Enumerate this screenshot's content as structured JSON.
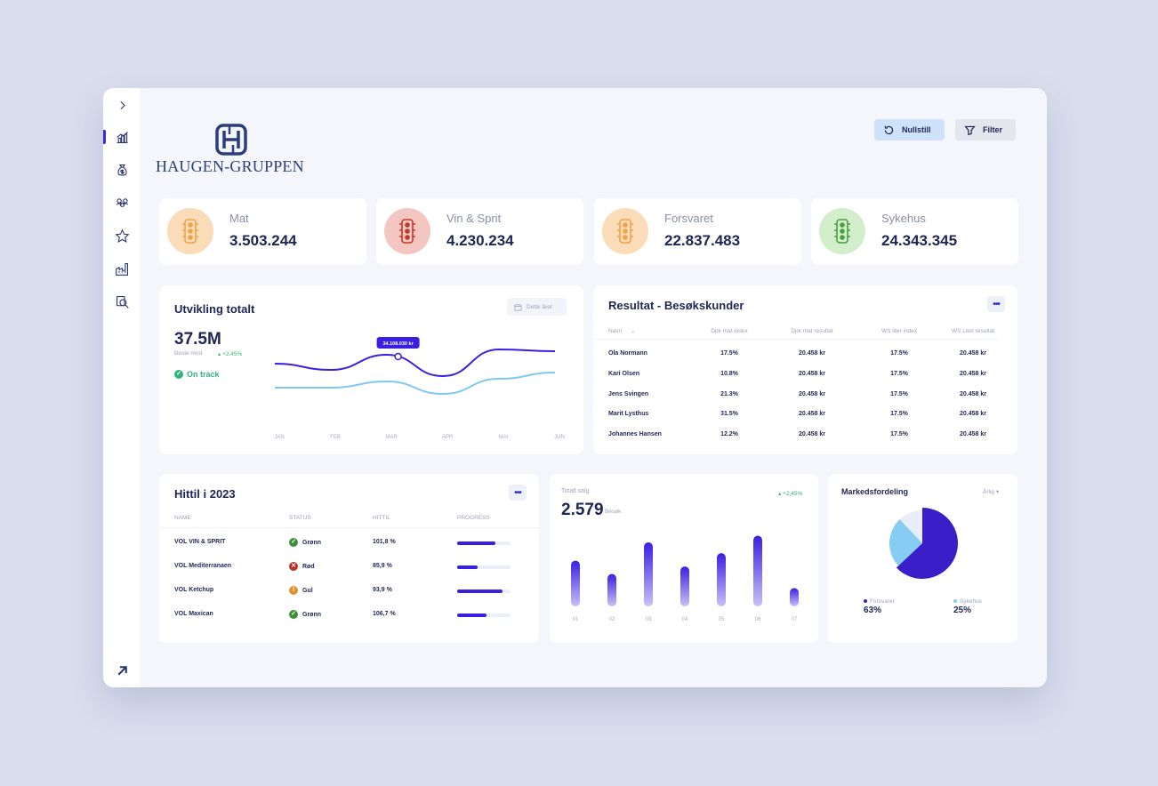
{
  "brand": {
    "name": "HAUGEN-GRUPPEN"
  },
  "sidebar": {
    "items": [
      {
        "icon": "chevron-right-icon"
      },
      {
        "icon": "chart-icon"
      },
      {
        "icon": "money-bag-icon"
      },
      {
        "icon": "group-icon"
      },
      {
        "icon": "star-icon"
      },
      {
        "icon": "factory-icon"
      },
      {
        "icon": "search-doc-icon"
      }
    ],
    "bottom_icon": "arrow-up-right-icon"
  },
  "header": {
    "reset_label": "Nullstill",
    "filter_label": "Filter"
  },
  "kpis": [
    {
      "label": "Mat",
      "value": "3.503.244",
      "color": "#f0a24a",
      "bg": "#fbdcb8"
    },
    {
      "label": "Vin & Sprit",
      "value": "4.230.234",
      "color": "#c0392b",
      "bg": "#f3c6c2"
    },
    {
      "label": "Forsvaret",
      "value": "22.837.483",
      "color": "#f0a24a",
      "bg": "#fbdcb8"
    },
    {
      "label": "Sykehus",
      "value": "24.343.345",
      "color": "#4a9e3f",
      "bg": "#d3eecb"
    }
  ],
  "development": {
    "title": "Utvikling totalt",
    "period": "Dette året",
    "value": "37.5M",
    "sub": "Beste mnd",
    "change": "+2.45%",
    "status": "On track",
    "tooltip": "34.108.030 kr",
    "chart_data": {
      "type": "line",
      "x": [
        "JAN",
        "FEB",
        "MAR",
        "APR",
        "MAI",
        "JUN"
      ],
      "series": [
        {
          "values": [
            62,
            55,
            72,
            48,
            78,
            76
          ],
          "color": "#3a1fe0"
        },
        {
          "values": [
            35,
            35,
            42,
            28,
            45,
            52
          ],
          "color": "#7fc8f2"
        }
      ],
      "ylim": [
        0,
        100
      ]
    }
  },
  "result": {
    "title": "Resultat - Besøkskunder",
    "columns": [
      "Navn",
      "Dpk mat index",
      "Dpk mat resultat",
      "WS liter index",
      "WS Liter resultat"
    ],
    "rows": [
      [
        "Ola Normann",
        "17.5%",
        "20.458 kr",
        "17.5%",
        "20.458 kr"
      ],
      [
        "Kari Olsen",
        "10.8%",
        "20.458 kr",
        "17.5%",
        "20.458 kr"
      ],
      [
        "Jens Svingen",
        "21.3%",
        "20.458 kr",
        "17.5%",
        "20.458 kr"
      ],
      [
        "Marit Lysthus",
        "31.5%",
        "20.458 kr",
        "17.5%",
        "20.458 kr"
      ],
      [
        "Johannes Hansen",
        "12.2%",
        "20.458 kr",
        "17.5%",
        "20.458 kr"
      ]
    ]
  },
  "hittil": {
    "title": "Hittil i 2023",
    "columns": [
      "NAME",
      "STATUS",
      "HITTIL",
      "PROGRESS"
    ],
    "rows": [
      {
        "name": "VOL VIN & SPRIT",
        "status": "Grønn",
        "status_color": "#3f8f3a",
        "status_mark": "✓",
        "hittil": "101,8 %",
        "progress": 0.72
      },
      {
        "name": "VOL Mediterranaen",
        "status": "Rød",
        "status_color": "#b8322a",
        "status_mark": "✕",
        "hittil": "85,9 %",
        "progress": 0.38
      },
      {
        "name": "VOL Ketchup",
        "status": "Gul",
        "status_color": "#e0912f",
        "status_mark": "!",
        "hittil": "93,9 %",
        "progress": 0.85
      },
      {
        "name": "VOL Maxican",
        "status": "Grønn",
        "status_color": "#3f8f3a",
        "status_mark": "✓",
        "hittil": "106,7 %",
        "progress": 0.55
      }
    ]
  },
  "sales": {
    "label": "Totalt salg",
    "value": "2.579",
    "unit": "Besøk",
    "change": "+2,45%",
    "chart_data": {
      "type": "bar",
      "categories": [
        "01",
        "02",
        "03",
        "04",
        "05",
        "06",
        "07"
      ],
      "values": [
        55,
        39,
        77,
        48,
        64,
        85,
        22
      ]
    }
  },
  "market": {
    "title": "Markedsfordeling",
    "period": "Årlig",
    "chart_data": {
      "type": "pie",
      "slices": [
        {
          "name": "Forsvaret",
          "value": 63,
          "label": "63%",
          "color": "#3a1fc9"
        },
        {
          "name": "Sykehus",
          "value": 25,
          "label": "25%",
          "color": "#87ccf3"
        },
        {
          "name": "",
          "value": 12,
          "label": "",
          "color": "#e9edf8"
        }
      ]
    }
  }
}
